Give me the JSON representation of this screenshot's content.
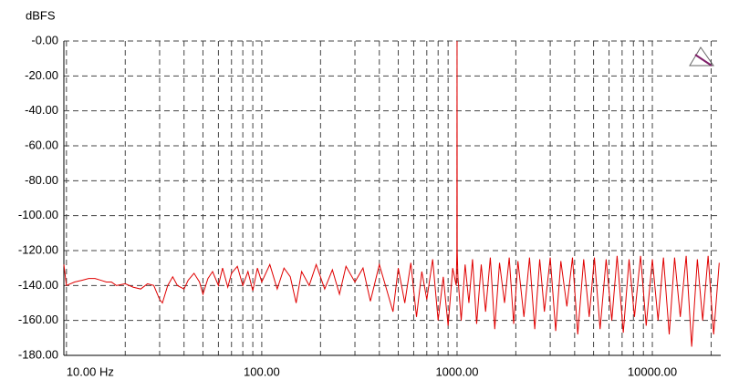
{
  "chart_data": {
    "type": "line",
    "y_label": "dBFS",
    "x": [
      9.7,
      10,
      11,
      12,
      13,
      14,
      15,
      16,
      17,
      18,
      20,
      22,
      24,
      26,
      28,
      30,
      31,
      33,
      35,
      37,
      40,
      42,
      45,
      48,
      50,
      53,
      56,
      60,
      63,
      67,
      70,
      75,
      80,
      85,
      90,
      95,
      100,
      110,
      120,
      130,
      140,
      150,
      160,
      175,
      190,
      210,
      230,
      250,
      270,
      300,
      330,
      360,
      400,
      430,
      470,
      500,
      540,
      580,
      620,
      660,
      700,
      750,
      800,
      850,
      900,
      950,
      990,
      998,
      1000,
      1002,
      1010,
      1050,
      1100,
      1150,
      1200,
      1260,
      1330,
      1400,
      1480,
      1560,
      1650,
      1750,
      1850,
      1950,
      2050,
      2200,
      2350,
      2500,
      2650,
      2800,
      3000,
      3200,
      3400,
      3650,
      3900,
      4150,
      4450,
      4750,
      5050,
      5400,
      5800,
      6200,
      6600,
      7100,
      7600,
      8100,
      8700,
      9300,
      10000,
      10700,
      11400,
      12200,
      13000,
      13900,
      14900,
      15900,
      17000,
      18100,
      19300,
      20600,
      22000
    ],
    "series": [
      {
        "color": "#e00000",
        "values": [
          -128,
          -140,
          -138,
          -137,
          -136,
          -136,
          -137,
          -138,
          -138,
          -140,
          -139,
          -141,
          -142,
          -139,
          -140,
          -148,
          -150,
          -140,
          -135,
          -140,
          -142,
          -137,
          -133,
          -138,
          -145,
          -136,
          -132,
          -140,
          -130,
          -141,
          -133,
          -129,
          -140,
          -132,
          -143,
          -130,
          -138,
          -128,
          -142,
          -130,
          -135,
          -150,
          -132,
          -140,
          -128,
          -142,
          -131,
          -145,
          -129,
          -138,
          -130,
          -149,
          -128,
          -140,
          -155,
          -130,
          -150,
          -127,
          -158,
          -132,
          -148,
          -125,
          -160,
          -135,
          -163,
          -130,
          -140,
          -120,
          0,
          -120,
          -135,
          -160,
          -128,
          -150,
          -125,
          -162,
          -128,
          -155,
          -124,
          -165,
          -127,
          -150,
          -124,
          -162,
          -126,
          -158,
          -124,
          -165,
          -125,
          -155,
          -124,
          -166,
          -126,
          -152,
          -124,
          -168,
          -125,
          -158,
          -124,
          -165,
          -125,
          -160,
          -123,
          -167,
          -125,
          -158,
          -123,
          -163,
          -125,
          -160,
          -124,
          -168,
          -124,
          -158,
          -123,
          -175,
          -125,
          -160,
          -123,
          -168,
          -127
        ]
      }
    ],
    "xlim": [
      9.7,
      22400
    ],
    "log_x": true,
    "ylim": [
      -180,
      0
    ],
    "xticks": [
      {
        "value": 10,
        "label": "10.00 Hz"
      },
      {
        "value": 100,
        "label": "100.00"
      },
      {
        "value": 1000,
        "label": "1000.00"
      },
      {
        "value": 10000,
        "label": "10000.00"
      }
    ],
    "x_minor_grid": [
      20,
      30,
      40,
      50,
      60,
      70,
      80,
      90,
      200,
      300,
      400,
      500,
      600,
      700,
      800,
      900,
      2000,
      3000,
      4000,
      5000,
      6000,
      7000,
      8000,
      9000,
      20000
    ],
    "yticks": [
      {
        "value": 0,
        "label": "-0.00"
      },
      {
        "value": -20,
        "label": "-20.00"
      },
      {
        "value": -40,
        "label": "-40.00"
      },
      {
        "value": -60,
        "label": "-60.00"
      },
      {
        "value": -80,
        "label": "-80.00"
      },
      {
        "value": -100,
        "label": "-100.00"
      },
      {
        "value": -120,
        "label": "-120.00"
      },
      {
        "value": -140,
        "label": "-140.00"
      },
      {
        "value": -160,
        "label": "-160.00"
      },
      {
        "value": -180,
        "label": "-180.00"
      }
    ],
    "grid": true
  }
}
